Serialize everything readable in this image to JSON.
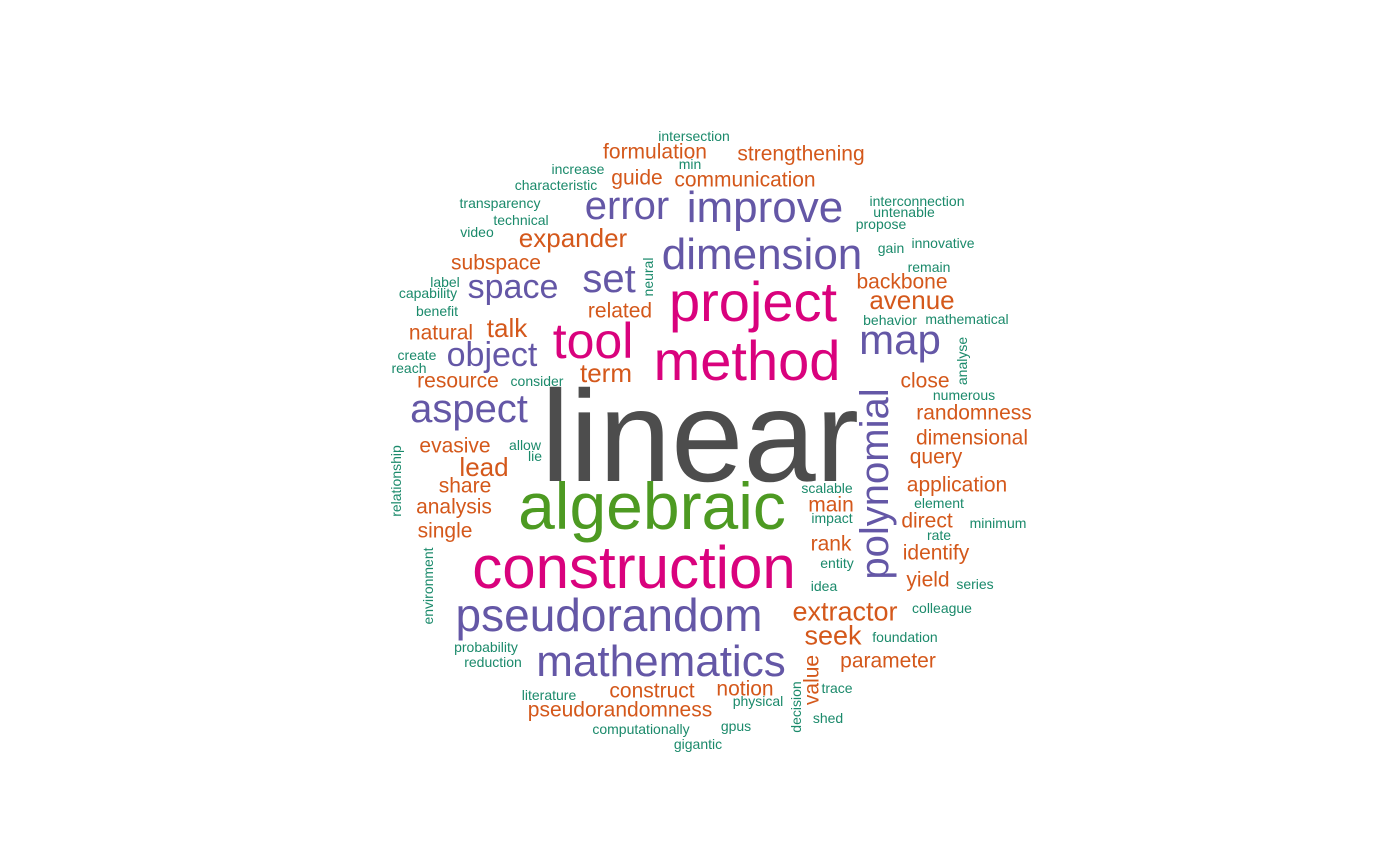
{
  "colors": {
    "gray": "#4d4d4d",
    "green": "#4d9a22",
    "magenta": "#d9027d",
    "purple": "#6457a6",
    "orange": "#d4581b",
    "teal": "#1b8a6b"
  },
  "words": [
    {
      "text": "linear",
      "color": "gray"
    },
    {
      "text": "algebraic",
      "color": "green"
    },
    {
      "text": "construction",
      "color": "magenta"
    },
    {
      "text": "method",
      "color": "magenta"
    },
    {
      "text": "project",
      "color": "magenta"
    },
    {
      "text": "tool",
      "color": "magenta"
    },
    {
      "text": "pseudorandom",
      "color": "purple"
    },
    {
      "text": "mathematics",
      "color": "purple"
    },
    {
      "text": "polynomial",
      "color": "purple"
    },
    {
      "text": "dimension",
      "color": "purple"
    },
    {
      "text": "improve",
      "color": "purple"
    },
    {
      "text": "error",
      "color": "purple"
    },
    {
      "text": "aspect",
      "color": "purple"
    },
    {
      "text": "map",
      "color": "purple"
    },
    {
      "text": "set",
      "color": "purple"
    },
    {
      "text": "space",
      "color": "purple"
    },
    {
      "text": "object",
      "color": "purple"
    },
    {
      "text": "extractor",
      "color": "orange"
    },
    {
      "text": "seek",
      "color": "orange"
    },
    {
      "text": "expander",
      "color": "orange"
    },
    {
      "text": "avenue",
      "color": "orange"
    },
    {
      "text": "talk",
      "color": "orange"
    },
    {
      "text": "lead",
      "color": "orange"
    },
    {
      "text": "term",
      "color": "orange"
    },
    {
      "text": "formulation",
      "color": "orange"
    },
    {
      "text": "strengthening",
      "color": "orange"
    },
    {
      "text": "communication",
      "color": "orange"
    },
    {
      "text": "guide",
      "color": "orange"
    },
    {
      "text": "subspace",
      "color": "orange"
    },
    {
      "text": "backbone",
      "color": "orange"
    },
    {
      "text": "related",
      "color": "orange"
    },
    {
      "text": "natural",
      "color": "orange"
    },
    {
      "text": "resource",
      "color": "orange"
    },
    {
      "text": "close",
      "color": "orange"
    },
    {
      "text": "randomness",
      "color": "orange"
    },
    {
      "text": "dimensional",
      "color": "orange"
    },
    {
      "text": "query",
      "color": "orange"
    },
    {
      "text": "evasive",
      "color": "orange"
    },
    {
      "text": "share",
      "color": "orange"
    },
    {
      "text": "analysis",
      "color": "orange"
    },
    {
      "text": "single",
      "color": "orange"
    },
    {
      "text": "application",
      "color": "orange"
    },
    {
      "text": "main",
      "color": "orange"
    },
    {
      "text": "direct",
      "color": "orange"
    },
    {
      "text": "rank",
      "color": "orange"
    },
    {
      "text": "identify",
      "color": "orange"
    },
    {
      "text": "yield",
      "color": "orange"
    },
    {
      "text": "parameter",
      "color": "orange"
    },
    {
      "text": "value",
      "color": "orange"
    },
    {
      "text": "notion",
      "color": "orange"
    },
    {
      "text": "construct",
      "color": "orange"
    },
    {
      "text": "pseudorandomness",
      "color": "orange"
    },
    {
      "text": "intersection",
      "color": "teal"
    },
    {
      "text": "min",
      "color": "teal"
    },
    {
      "text": "increase",
      "color": "teal"
    },
    {
      "text": "characteristic",
      "color": "teal"
    },
    {
      "text": "transparency",
      "color": "teal"
    },
    {
      "text": "technical",
      "color": "teal"
    },
    {
      "text": "video",
      "color": "teal"
    },
    {
      "text": "interconnection",
      "color": "teal"
    },
    {
      "text": "untenable",
      "color": "teal"
    },
    {
      "text": "propose",
      "color": "teal"
    },
    {
      "text": "gain",
      "color": "teal"
    },
    {
      "text": "innovative",
      "color": "teal"
    },
    {
      "text": "remain",
      "color": "teal"
    },
    {
      "text": "label",
      "color": "teal"
    },
    {
      "text": "capability",
      "color": "teal"
    },
    {
      "text": "neural",
      "color": "teal"
    },
    {
      "text": "benefit",
      "color": "teal"
    },
    {
      "text": "behavior",
      "color": "teal"
    },
    {
      "text": "mathematical",
      "color": "teal"
    },
    {
      "text": "create",
      "color": "teal"
    },
    {
      "text": "reach",
      "color": "teal"
    },
    {
      "text": "consider",
      "color": "teal"
    },
    {
      "text": "analyse",
      "color": "teal"
    },
    {
      "text": "numerous",
      "color": "teal"
    },
    {
      "text": "allow",
      "color": "teal"
    },
    {
      "text": "lie",
      "color": "teal"
    },
    {
      "text": "relationship",
      "color": "teal"
    },
    {
      "text": "scalable",
      "color": "teal"
    },
    {
      "text": "element",
      "color": "teal"
    },
    {
      "text": "impact",
      "color": "teal"
    },
    {
      "text": "minimum",
      "color": "teal"
    },
    {
      "text": "rate",
      "color": "teal"
    },
    {
      "text": "entity",
      "color": "teal"
    },
    {
      "text": "idea",
      "color": "teal"
    },
    {
      "text": "series",
      "color": "teal"
    },
    {
      "text": "environment",
      "color": "teal"
    },
    {
      "text": "colleague",
      "color": "teal"
    },
    {
      "text": "foundation",
      "color": "teal"
    },
    {
      "text": "probability",
      "color": "teal"
    },
    {
      "text": "reduction",
      "color": "teal"
    },
    {
      "text": "trace",
      "color": "teal"
    },
    {
      "text": "literature",
      "color": "teal"
    },
    {
      "text": "physical",
      "color": "teal"
    },
    {
      "text": "decision",
      "color": "teal"
    },
    {
      "text": "shed",
      "color": "teal"
    },
    {
      "text": "computationally",
      "color": "teal"
    },
    {
      "text": "gpus",
      "color": "teal"
    },
    {
      "text": "gigantic",
      "color": "teal"
    }
  ]
}
